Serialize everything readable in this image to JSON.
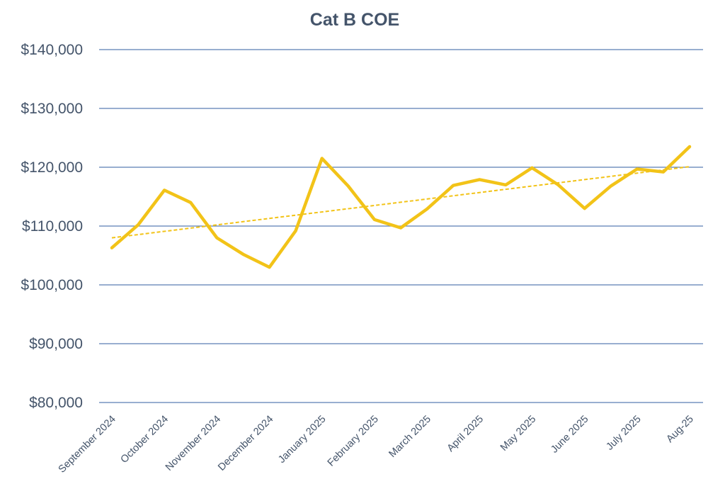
{
  "chart_data": {
    "type": "line",
    "title": "Cat B COE",
    "xlabel": "",
    "ylabel": "",
    "ylim": [
      80000,
      140000
    ],
    "yticks": [
      {
        "value": 140000,
        "label": "$140,000"
      },
      {
        "value": 130000,
        "label": "$130,000"
      },
      {
        "value": 120000,
        "label": "$120,000"
      },
      {
        "value": 110000,
        "label": "$110,000"
      },
      {
        "value": 100000,
        "label": "$100,000"
      },
      {
        "value": 90000,
        "label": "$90,000"
      },
      {
        "value": 80000,
        "label": "$80,000"
      }
    ],
    "grid": true,
    "categories": [
      "September 2024",
      "October 2024",
      "November 2024",
      "December 2024",
      "January 2025",
      "February 2025",
      "March 2025",
      "April 2025",
      "May 2025",
      "June 2025",
      "July 2025",
      "Aug-25"
    ],
    "series": [
      {
        "name": "Cat B COE",
        "color": "#f2c318",
        "x": [
          0,
          0.5,
          1,
          1.5,
          2,
          2.5,
          3,
          3.5,
          4,
          4.5,
          5,
          5.5,
          6,
          6.5,
          7,
          7.5,
          8,
          8.5,
          9,
          9.5,
          10,
          10.5,
          11
        ],
        "values": [
          106300,
          110200,
          116100,
          114000,
          108000,
          105200,
          103000,
          109200,
          121500,
          116800,
          111100,
          109700,
          112900,
          116900,
          117900,
          117000,
          119900,
          117000,
          113000,
          116800,
          119700,
          119200,
          123500
        ]
      }
    ],
    "trendline": {
      "name": "Linear trend",
      "color": "#f2c318",
      "style": "dashed",
      "start": {
        "x": 0,
        "value": 108000
      },
      "end": {
        "x": 11,
        "value": 120100
      }
    }
  }
}
